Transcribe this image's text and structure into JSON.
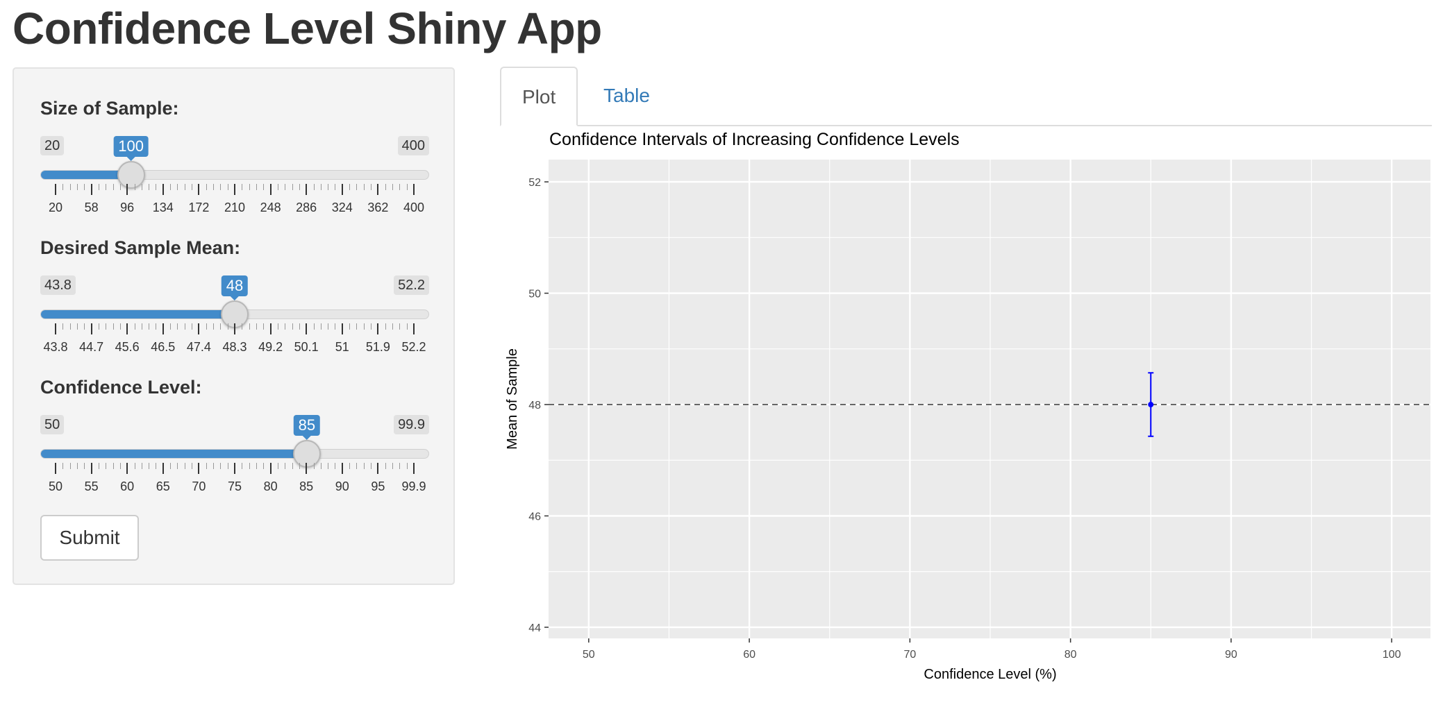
{
  "app": {
    "title": "Confidence Level Shiny App"
  },
  "sidebar": {
    "sliders": [
      {
        "label": "Size of Sample:",
        "min": 20,
        "max": 400,
        "value": 100,
        "min_label": "20",
        "max_label": "400",
        "value_label": "100",
        "tick_labels": [
          "20",
          "58",
          "96",
          "134",
          "172",
          "210",
          "248",
          "286",
          "324",
          "362",
          "400"
        ]
      },
      {
        "label": "Desired Sample Mean:",
        "min": 43.8,
        "max": 52.2,
        "value": 48,
        "min_label": "43.8",
        "max_label": "52.2",
        "value_label": "48",
        "tick_labels": [
          "43.8",
          "44.7",
          "45.6",
          "46.5",
          "47.4",
          "48.3",
          "49.2",
          "50.1",
          "51",
          "51.9",
          "52.2"
        ]
      },
      {
        "label": "Confidence Level:",
        "min": 50,
        "max": 99.9,
        "value": 85,
        "min_label": "50",
        "max_label": "99.9",
        "value_label": "85",
        "tick_labels": [
          "50",
          "55",
          "60",
          "65",
          "70",
          "75",
          "80",
          "85",
          "90",
          "95",
          "99.9"
        ]
      }
    ],
    "submit_label": "Submit"
  },
  "tabs": [
    {
      "label": "Plot",
      "active": true
    },
    {
      "label": "Table",
      "active": false
    }
  ],
  "colors": {
    "accent": "#428bca",
    "link": "#337ab7",
    "panel_bg": "#ebebeb",
    "interval": "#0000ff",
    "reference_line": "#666666"
  },
  "chart_data": {
    "type": "scatter",
    "title": "Confidence Intervals of Increasing Confidence Levels",
    "xlabel": "Confidence Level (%)",
    "ylabel": "Mean of Sample",
    "xlim": [
      47.5,
      102.5
    ],
    "ylim": [
      43.8,
      52.4
    ],
    "x_ticks": [
      50,
      60,
      70,
      80,
      90,
      100
    ],
    "y_ticks": [
      44,
      46,
      48,
      50,
      52
    ],
    "grid": true,
    "reference_line": {
      "y": 48,
      "style": "dashed"
    },
    "series": [
      {
        "points": [
          {
            "x": 85,
            "y": 48,
            "ymin": 47.43,
            "ymax": 48.57
          }
        ]
      }
    ]
  }
}
